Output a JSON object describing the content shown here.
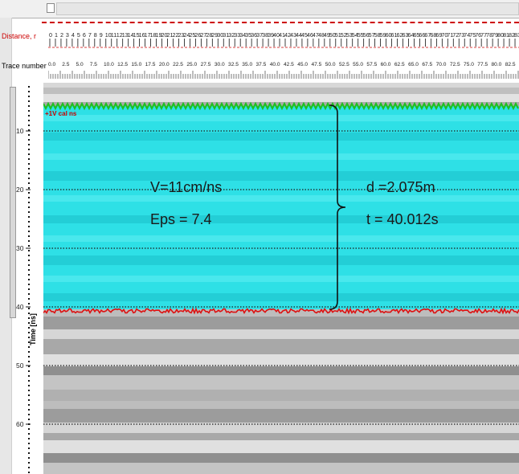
{
  "ruler": {
    "distance_label": "Distance, r",
    "trace_label": "Trace number",
    "distance_ticks": [
      "0",
      "1",
      "2",
      "3",
      "4",
      "5",
      "6",
      "7",
      "8",
      "9",
      "10",
      "11",
      "12",
      "13",
      "14",
      "15",
      "16",
      "17",
      "18",
      "19",
      "20",
      "21",
      "22",
      "23",
      "24",
      "25",
      "26",
      "27",
      "28",
      "29",
      "30",
      "31",
      "32",
      "33",
      "34",
      "35",
      "36",
      "37",
      "38",
      "39",
      "40",
      "41",
      "42",
      "43",
      "44",
      "45",
      "46",
      "47",
      "48",
      "49",
      "50",
      "51",
      "52",
      "53",
      "54",
      "55",
      "56",
      "57",
      "58",
      "59",
      "60",
      "61",
      "62",
      "63",
      "64",
      "65",
      "66",
      "67",
      "68",
      "69",
      "70",
      "71",
      "72",
      "73",
      "74",
      "75",
      "76",
      "77",
      "78",
      "79",
      "80",
      "81",
      "82",
      "83"
    ],
    "trace_ticks": [
      "0.0",
      "2.5",
      "5.0",
      "7.5",
      "10.0",
      "12.5",
      "15.0",
      "17.5",
      "20.0",
      "22.5",
      "25.0",
      "27.5",
      "30.0",
      "32.5",
      "35.0",
      "37.5",
      "40.0",
      "42.5",
      "45.0",
      "47.5",
      "50.0",
      "52.5",
      "55.0",
      "57.5",
      "60.0",
      "62.5",
      "65.0",
      "67.5",
      "70.0",
      "72.5",
      "75.0",
      "77.5",
      "80.0",
      "82.5"
    ]
  },
  "time_axis": {
    "title": "Time [ns]",
    "ticks": [
      "10",
      "20",
      "30",
      "40",
      "50",
      "60"
    ]
  },
  "annotations": {
    "velocity": "V=11cm/ns",
    "permittivity": "Eps = 7.4",
    "depth": "d =2.075m",
    "two_way_time": "t = 40.012s"
  },
  "picks": {
    "surface_tag": "+1V cal ns"
  },
  "colors": {
    "highlight": "#25d6dc",
    "surface_pick": "#1fbf1f",
    "bottom_pick": "#dd1111",
    "ruler_red": "#cc0000"
  }
}
